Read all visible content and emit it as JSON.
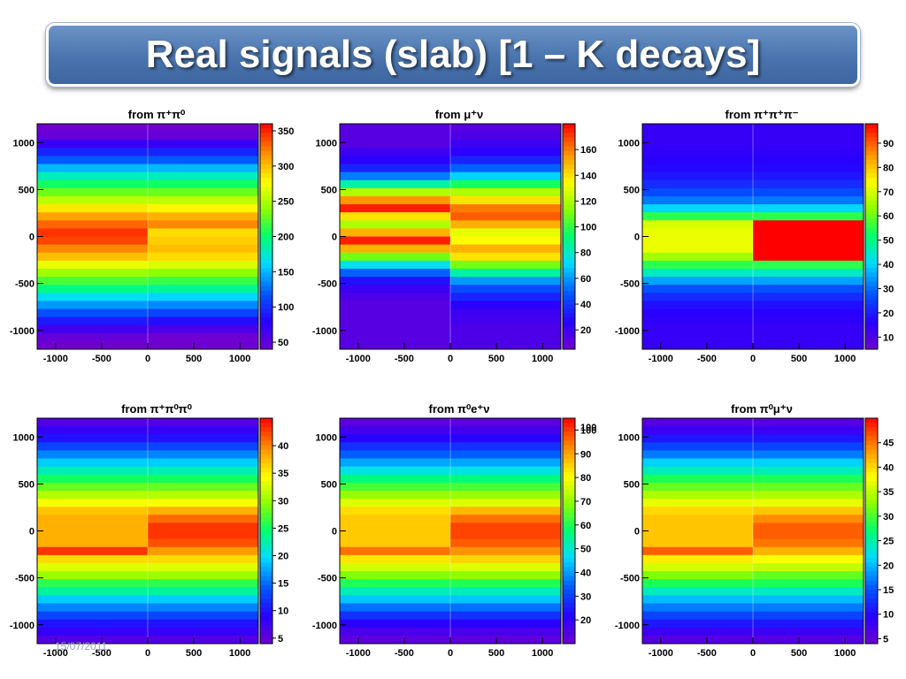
{
  "slide": {
    "title": "Real signals (slab) [1 – K decays]",
    "footer_date": "15/07/2011"
  },
  "chart_data": [
    {
      "type": "heatmap",
      "title": "from π⁺π⁰",
      "x_ticks": [
        -1000,
        -500,
        0,
        500,
        1000
      ],
      "y_ticks": [
        1000,
        500,
        0,
        -500,
        -1000
      ],
      "xlim": [
        -1200,
        1200
      ],
      "ylim": [
        -1200,
        1200
      ],
      "split_x": 0,
      "colorbar": {
        "min": 40,
        "max": 360,
        "ticks": [
          50,
          100,
          150,
          200,
          250,
          300,
          350
        ]
      },
      "colorbar_clip": "",
      "rows_left": [
        30,
        45,
        70,
        95,
        120,
        150,
        180,
        205,
        230,
        255,
        285,
        310,
        330,
        345,
        340,
        320,
        300,
        270,
        245,
        220,
        195,
        165,
        140,
        115,
        90,
        65,
        45,
        30
      ],
      "rows_right": [
        30,
        45,
        70,
        95,
        120,
        150,
        180,
        205,
        230,
        255,
        280,
        305,
        320,
        290,
        295,
        300,
        290,
        265,
        240,
        215,
        190,
        160,
        135,
        110,
        85,
        60,
        40,
        25
      ]
    },
    {
      "type": "heatmap",
      "title": "from μ⁺ν",
      "x_ticks": [
        -1000,
        -500,
        0,
        500,
        1000
      ],
      "y_ticks": [
        1000,
        500,
        0,
        -500,
        -1000
      ],
      "xlim": [
        -1200,
        1200
      ],
      "ylim": [
        -1200,
        1200
      ],
      "split_x": 0,
      "colorbar": {
        "min": 5,
        "max": 180,
        "ticks": [
          20,
          40,
          60,
          80,
          100,
          120,
          140,
          160
        ]
      },
      "colorbar_clip": "",
      "rows_left": [
        12,
        12,
        12,
        20,
        25,
        35,
        55,
        85,
        120,
        155,
        175,
        140,
        120,
        150,
        175,
        150,
        110,
        75,
        50,
        30,
        20,
        15,
        12,
        12,
        12,
        12,
        12,
        12
      ],
      "rows_right": [
        12,
        15,
        20,
        25,
        35,
        50,
        70,
        95,
        120,
        140,
        160,
        165,
        150,
        130,
        135,
        150,
        140,
        110,
        85,
        60,
        45,
        35,
        25,
        20,
        18,
        15,
        15,
        15
      ]
    },
    {
      "type": "heatmap",
      "title": "from π⁺π⁺π⁻",
      "x_ticks": [
        -1000,
        -500,
        0,
        500,
        1000
      ],
      "y_ticks": [
        1000,
        500,
        0,
        -500,
        -1000
      ],
      "xlim": [
        -1200,
        1200
      ],
      "ylim": [
        -1200,
        1200
      ],
      "split_x": 0,
      "colorbar": {
        "min": 5,
        "max": 98,
        "ticks": [
          10,
          20,
          30,
          40,
          50,
          60,
          70,
          80,
          90
        ]
      },
      "colorbar_clip": "",
      "rows_left": [
        14,
        14,
        14,
        15,
        16,
        17,
        19,
        22,
        26,
        31,
        40,
        55,
        70,
        72,
        72,
        72,
        65,
        55,
        45,
        35,
        27,
        22,
        18,
        16,
        15,
        14,
        14,
        14
      ],
      "rows_right": [
        14,
        14,
        14,
        15,
        16,
        17,
        19,
        22,
        26,
        31,
        40,
        55,
        98,
        98,
        98,
        98,
        98,
        55,
        45,
        35,
        27,
        22,
        18,
        16,
        15,
        14,
        14,
        14
      ]
    },
    {
      "type": "heatmap",
      "title": "from π⁺π⁰π⁰",
      "x_ticks": [
        -1000,
        -500,
        0,
        500,
        1000
      ],
      "y_ticks": [
        1000,
        500,
        0,
        -500,
        -1000
      ],
      "xlim": [
        -1200,
        1200
      ],
      "ylim": [
        -1200,
        1200
      ],
      "split_x": 0,
      "colorbar": {
        "min": 4,
        "max": 45,
        "ticks": [
          5,
          10,
          15,
          20,
          25,
          30,
          35,
          40
        ]
      },
      "colorbar_clip": "",
      "rows_left": [
        6,
        8,
        10,
        13,
        16,
        19,
        22,
        25,
        28,
        31,
        34,
        37,
        38,
        38,
        38,
        38,
        43,
        36,
        33,
        30,
        26,
        23,
        19,
        16,
        13,
        10,
        8,
        6
      ],
      "rows_right": [
        6,
        8,
        10,
        13,
        16,
        19,
        22,
        25,
        28,
        31,
        34,
        38,
        41,
        43,
        43,
        42,
        39,
        36,
        33,
        30,
        26,
        23,
        19,
        16,
        13,
        10,
        8,
        6
      ]
    },
    {
      "type": "heatmap",
      "title": "from π⁰e⁺ν",
      "x_ticks": [
        -1000,
        -500,
        0,
        500,
        1000
      ],
      "y_ticks": [
        1000,
        500,
        0,
        -500,
        -1000
      ],
      "xlim": [
        -1200,
        1200
      ],
      "ylim": [
        -1200,
        1200
      ],
      "split_x": 0,
      "colorbar": {
        "min": 10,
        "max": 105,
        "ticks": [
          20,
          30,
          40,
          50,
          60,
          70,
          80,
          90,
          100
        ]
      },
      "colorbar_clip": "100",
      "rows_left": [
        13,
        17,
        22,
        28,
        34,
        41,
        48,
        56,
        63,
        70,
        77,
        84,
        86,
        86,
        86,
        86,
        95,
        83,
        76,
        68,
        60,
        52,
        44,
        36,
        28,
        21,
        16,
        13
      ],
      "rows_right": [
        13,
        17,
        22,
        28,
        34,
        41,
        48,
        56,
        63,
        70,
        77,
        88,
        95,
        99,
        99,
        97,
        92,
        85,
        77,
        69,
        60,
        52,
        44,
        36,
        28,
        21,
        16,
        13
      ]
    },
    {
      "type": "heatmap",
      "title": "from π⁰μ⁺ν",
      "x_ticks": [
        -1000,
        -500,
        0,
        500,
        1000
      ],
      "y_ticks": [
        1000,
        500,
        0,
        -500,
        -1000
      ],
      "xlim": [
        -1200,
        1200
      ],
      "ylim": [
        -1200,
        1200
      ],
      "split_x": 0,
      "colorbar": {
        "min": 4,
        "max": 50,
        "ticks": [
          5,
          10,
          15,
          20,
          25,
          30,
          35,
          40,
          45
        ]
      },
      "colorbar_clip": "",
      "rows_left": [
        6,
        8,
        11,
        14,
        17,
        21,
        24,
        28,
        31,
        34,
        37,
        40,
        41,
        41,
        41,
        41,
        46,
        39,
        36,
        32,
        28,
        24,
        20,
        17,
        14,
        11,
        8,
        6
      ],
      "rows_right": [
        6,
        8,
        11,
        14,
        17,
        21,
        24,
        28,
        31,
        34,
        37,
        41,
        44,
        46,
        46,
        45,
        42,
        38,
        35,
        31,
        28,
        24,
        20,
        17,
        14,
        11,
        8,
        6
      ]
    }
  ]
}
